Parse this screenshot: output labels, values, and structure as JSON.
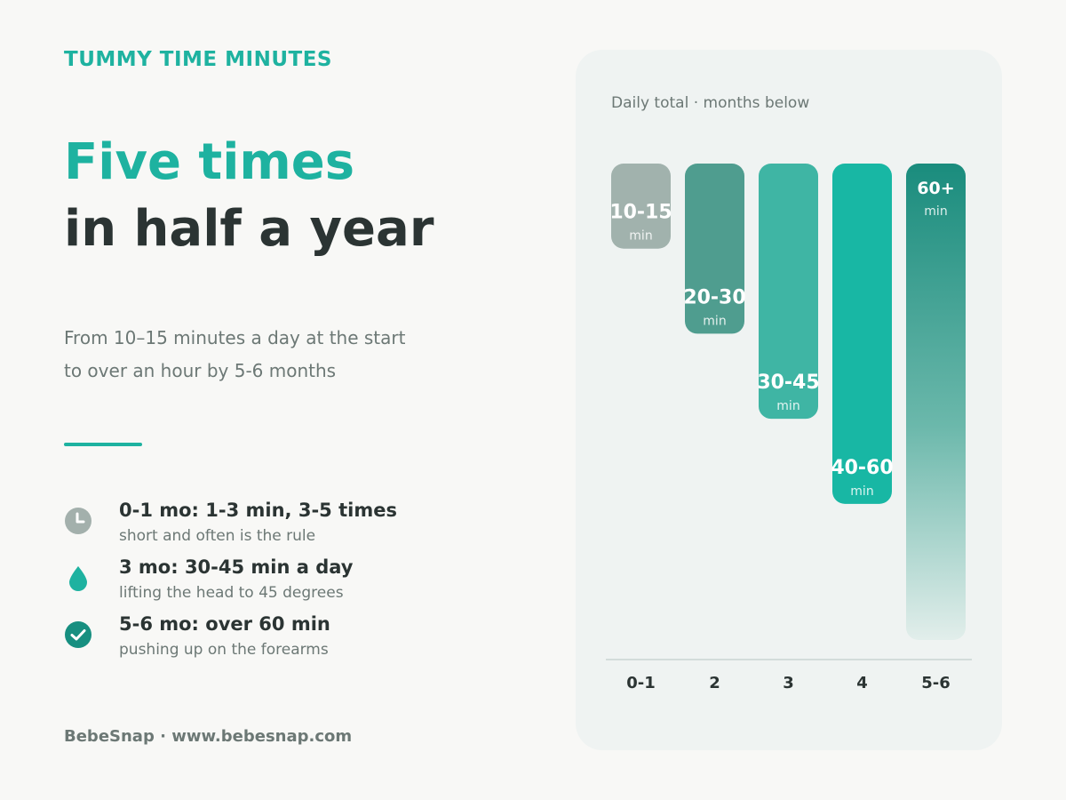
{
  "header": {
    "eyebrow": "TUMMY TIME MINUTES",
    "headline_line1": "Five times",
    "headline_line2": "in half a year",
    "subtext_line1": "From 10–15 minutes a day at the start",
    "subtext_line2": "to over an hour by 5-6 months"
  },
  "tips": [
    {
      "icon": "clock-icon",
      "title": "0-1 mo: 1-3 min, 3-5 times",
      "desc": "short and often is the rule",
      "color": "#a3b0ac"
    },
    {
      "icon": "drop-icon",
      "title": "3 mo: 30-45 min a day",
      "desc": "lifting the head to 45 degrees",
      "color": "#1eb2a0"
    },
    {
      "icon": "check-circle-icon",
      "title": "5-6 mo: over 60 min",
      "desc": "pushing up on the forearms",
      "color": "#178f80"
    }
  ],
  "footer": {
    "text": "BebeSnap · www.bebesnap.com"
  },
  "colors": {
    "accent": "#1eb2a0",
    "dark": "#2b3433",
    "muted": "#6c7875"
  },
  "chart_data": {
    "type": "bar",
    "caption": "Daily total · months below",
    "categories": [
      "0-1",
      "2",
      "3",
      "4",
      "5-6"
    ],
    "labels": [
      "10-15",
      "20-30",
      "30-45",
      "40-60",
      "60+"
    ],
    "unit_label": "min",
    "values": [
      15,
      30,
      45,
      60,
      84
    ],
    "ylim": [
      0,
      84
    ],
    "colors": [
      "#a1b2ad",
      "#4f9d8f",
      "#3fb5a4",
      "#18b7a4",
      "#1e9585"
    ],
    "last_bar_gradient": true,
    "grid": false
  }
}
